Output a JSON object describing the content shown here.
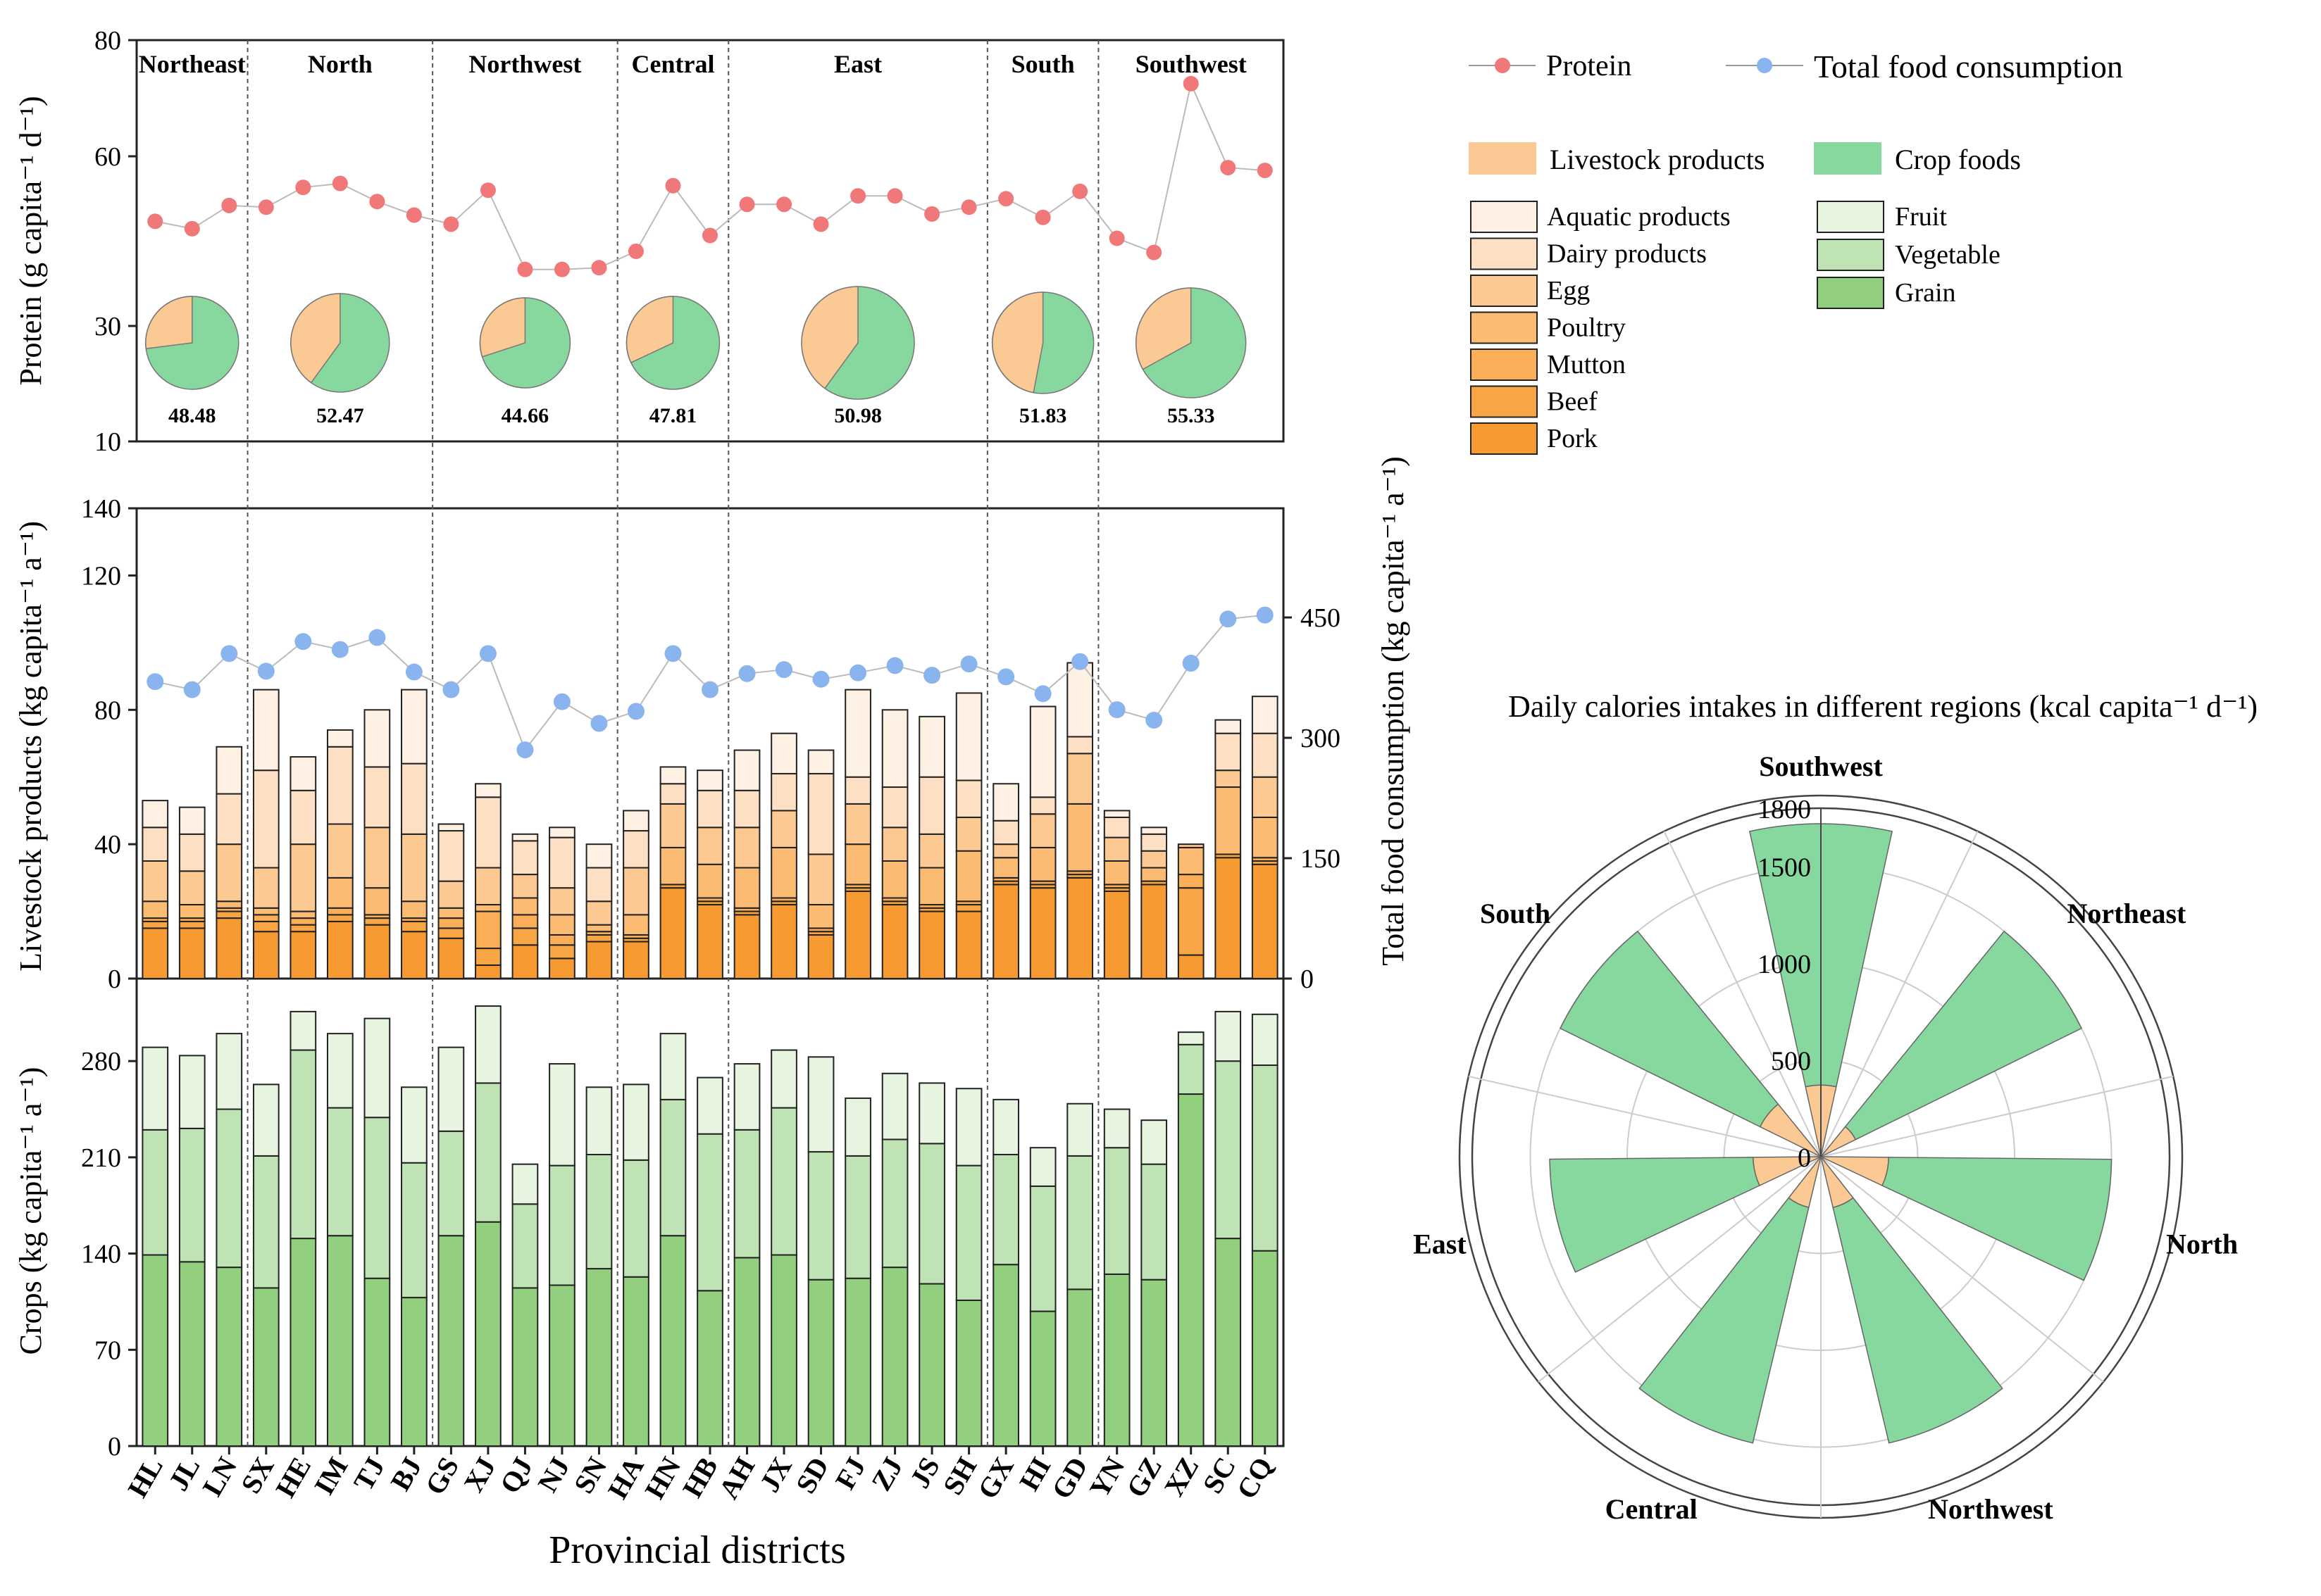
{
  "colors": {
    "protein_marker": "#f07878",
    "total_marker": "#8ab4ee",
    "line": "#bbbbbb",
    "livestock": [
      "#fbc993",
      "#fbbc7c",
      "#fbae67",
      "#f9a04f",
      "#f89435",
      "#f78b27",
      "#f7871f"
    ],
    "livestock_light": [
      "#fef0e4",
      "#fde3cd"
    ],
    "crop_fruit": "#e6f4e0",
    "crop_vegetable": "#bfe3b4",
    "crop_grain": "#92cf7e",
    "crop_pie": "#86d89e",
    "animal_pie": "#fbc993"
  },
  "legend": {
    "protein": "Protein",
    "total_food": "Total food consumption",
    "livestock_products": "Livestock products",
    "crop_foods": "Crop foods",
    "livestock_items": [
      "Aquatic products",
      "Dairy products",
      "Egg",
      "Poultry",
      "Mutton",
      "Beef",
      "Pork"
    ],
    "crop_items": [
      "Fruit",
      "Vegetable",
      "Grain"
    ]
  },
  "chart_data": [
    {
      "type": "line",
      "id": "protein",
      "ylabel": "Protein (g capita⁻¹ d⁻¹)",
      "yticks": [
        10,
        30,
        60,
        80
      ],
      "categories": [
        "HL",
        "JL",
        "LN",
        "SX",
        "HE",
        "IM",
        "TJ",
        "BJ",
        "GS",
        "XJ",
        "QJ",
        "NJ",
        "SN",
        "HA",
        "HN",
        "HB",
        "AH",
        "JX",
        "SD",
        "FJ",
        "ZJ",
        "JS",
        "SH",
        "GX",
        "HI",
        "GD",
        "YN",
        "GZ",
        "XZ",
        "SC",
        "CQ"
      ],
      "values": [
        48.5,
        47.2,
        51.3,
        51.0,
        54.5,
        55.2,
        52.0,
        49.6,
        48.0,
        54.0,
        40.0,
        40.0,
        40.3,
        43.2,
        54.8,
        46.0,
        51.5,
        51.5,
        48.0,
        53.0,
        53.0,
        49.8,
        51.0,
        52.5,
        49.2,
        53.8,
        45.5,
        43.0,
        72.5,
        58.0,
        57.5
      ],
      "regions": [
        {
          "name": "Northeast",
          "count": 3,
          "avg": "48.48",
          "animal_share": 0.27
        },
        {
          "name": "North",
          "count": 5,
          "avg": "52.47",
          "animal_share": 0.4
        },
        {
          "name": "Northwest",
          "count": 5,
          "avg": "44.66",
          "animal_share": 0.3
        },
        {
          "name": "Central",
          "count": 3,
          "avg": "47.81",
          "animal_share": 0.32
        },
        {
          "name": "East",
          "count": 7,
          "avg": "50.98",
          "animal_share": 0.4
        },
        {
          "name": "South",
          "count": 3,
          "avg": "51.83",
          "animal_share": 0.47
        },
        {
          "name": "Southwest",
          "count": 5,
          "avg": "55.33",
          "animal_share": 0.33
        }
      ]
    },
    {
      "type": "bar",
      "id": "livestock",
      "ylabel": "Livestock products (kg capita⁻¹ a⁻¹)",
      "y2label": "Total food consumption (kg capita⁻¹ a⁻¹)",
      "ylim": [
        0,
        140
      ],
      "yticks": [
        0,
        40,
        80,
        120,
        140
      ],
      "y2ticks": [
        0,
        150,
        300,
        450
      ],
      "stack_order": [
        "Pork",
        "Beef",
        "Mutton",
        "Poultry",
        "Egg",
        "Dairy products",
        "Aquatic products"
      ],
      "series": [
        {
          "name": "Pork",
          "values": [
            15,
            15,
            18,
            14,
            14,
            17,
            16,
            14,
            12,
            4,
            10,
            6,
            11,
            11,
            27,
            22,
            19,
            22,
            13,
            26,
            22,
            20,
            20,
            28,
            27,
            30,
            26,
            28,
            7,
            36,
            34
          ]
        },
        {
          "name": "Beef",
          "values": [
            2,
            2,
            2,
            3,
            2,
            2,
            2,
            3,
            3,
            5,
            5,
            4,
            2,
            1,
            1,
            1,
            1,
            1,
            1,
            1,
            1,
            1,
            2,
            1,
            1,
            1,
            1,
            1,
            20,
            1,
            1
          ]
        },
        {
          "name": "Mutton",
          "values": [
            1,
            1,
            1,
            2,
            2,
            2,
            1,
            1,
            3,
            11,
            4,
            3,
            1,
            1,
            0,
            1,
            1,
            1,
            1,
            1,
            1,
            1,
            1,
            1,
            1,
            1,
            1,
            0,
            4,
            0,
            1
          ]
        },
        {
          "name": "Poultry",
          "values": [
            5,
            4,
            2,
            2,
            2,
            9,
            8,
            5,
            3,
            2,
            5,
            6,
            2,
            6,
            11,
            10,
            12,
            15,
            7,
            12,
            11,
            11,
            15,
            6,
            10,
            20,
            7,
            4,
            8,
            20,
            12
          ]
        },
        {
          "name": "Egg",
          "values": [
            12,
            10,
            17,
            12,
            20,
            16,
            18,
            20,
            8,
            11,
            7,
            8,
            7,
            14,
            13,
            11,
            12,
            11,
            15,
            12,
            10,
            10,
            10,
            4,
            10,
            15,
            7,
            5,
            1,
            5,
            12
          ]
        },
        {
          "name": "Dairy products",
          "values": [
            10,
            11,
            15,
            29,
            16,
            23,
            18,
            21,
            15,
            21,
            10,
            15,
            10,
            11,
            6,
            11,
            11,
            11,
            24,
            8,
            12,
            17,
            11,
            7,
            5,
            5,
            6,
            5,
            0,
            11,
            13
          ]
        },
        {
          "name": "Aquatic products",
          "values": [
            8,
            8,
            14,
            24,
            10,
            5,
            17,
            22,
            2,
            4,
            2,
            3,
            7,
            6,
            5,
            6,
            12,
            12,
            7,
            26,
            23,
            18,
            26,
            11,
            27,
            22,
            2,
            2,
            0,
            4,
            11
          ]
        }
      ],
      "total_food": [
        370,
        360,
        405,
        383,
        420,
        410,
        425,
        382,
        360,
        405,
        285,
        345,
        318,
        333,
        405,
        360,
        380,
        385,
        373,
        381,
        390,
        378,
        392,
        376,
        355,
        395,
        335,
        322,
        393,
        448,
        453
      ]
    },
    {
      "type": "bar",
      "id": "crops",
      "ylabel": "Crops (kg capita⁻¹ a⁻¹)",
      "xlabel": "Provincial districts",
      "ylim": [
        0,
        340
      ],
      "yticks": [
        0,
        70,
        140,
        210,
        280
      ],
      "stack_order": [
        "Grain",
        "Vegetable",
        "Fruit"
      ],
      "series": [
        {
          "name": "Grain",
          "values": [
            139,
            134,
            130,
            115,
            151,
            153,
            122,
            108,
            153,
            163,
            115,
            117,
            129,
            123,
            153,
            113,
            137,
            139,
            121,
            122,
            130,
            118,
            106,
            132,
            98,
            114,
            125,
            121,
            256,
            151,
            142
          ]
        },
        {
          "name": "Vegetable",
          "values": [
            91,
            97,
            115,
            96,
            137,
            93,
            117,
            98,
            76,
            101,
            61,
            87,
            83,
            85,
            99,
            114,
            93,
            107,
            93,
            89,
            93,
            102,
            98,
            80,
            91,
            97,
            92,
            84,
            36,
            129,
            135
          ]
        },
        {
          "name": "Fruit",
          "values": [
            60,
            53,
            55,
            52,
            28,
            54,
            72,
            55,
            61,
            56,
            29,
            74,
            49,
            55,
            48,
            41,
            48,
            42,
            69,
            42,
            48,
            44,
            56,
            40,
            28,
            38,
            28,
            32,
            9,
            36,
            37
          ]
        }
      ]
    },
    {
      "type": "bar",
      "id": "calories",
      "title": "Daily calories intakes in different regions (kcal capita⁻¹ d⁻¹)",
      "polar": true,
      "rmax": 1800,
      "rticks": [
        0,
        500,
        1000,
        1500,
        1800
      ],
      "categories": [
        "Southwest",
        "Northeast",
        "North",
        "Northwest",
        "Central",
        "East",
        "South"
      ],
      "series": [
        {
          "name": "Livestock products",
          "values": [
            370,
            200,
            350,
            270,
            270,
            350,
            350
          ]
        },
        {
          "name": "Crop foods",
          "values": [
            1350,
            1300,
            1150,
            1250,
            1250,
            1050,
            1150
          ]
        }
      ]
    }
  ]
}
